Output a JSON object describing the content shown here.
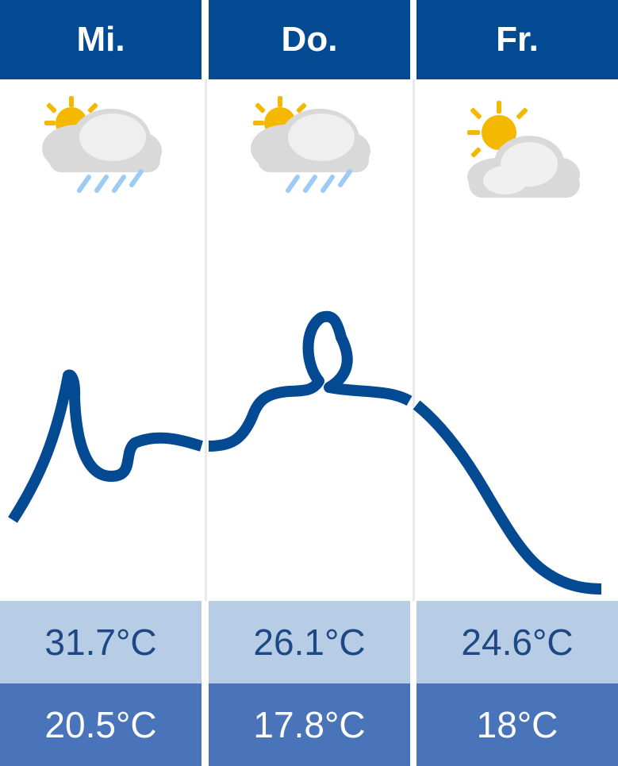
{
  "forecast": {
    "days": [
      {
        "label": "Mi.",
        "icon": "partly-cloudy-rain-icon",
        "max": "31.7°C",
        "min": "20.5°C"
      },
      {
        "label": "Do.",
        "icon": "partly-cloudy-rain-icon",
        "max": "26.1°C",
        "min": "17.8°C"
      },
      {
        "label": "Fr.",
        "icon": "partly-cloudy-icon",
        "max": "24.6°C",
        "min": "18°C"
      }
    ]
  },
  "colors": {
    "header": "#034a93",
    "curve": "#034a93",
    "max_band": "#b7cce5",
    "min_band": "#4a74b9",
    "sun": "#f5b800",
    "cloud": "#d9d9d9",
    "rain": "#9ecbf5"
  }
}
